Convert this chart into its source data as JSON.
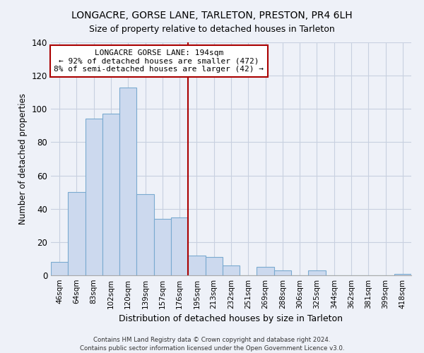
{
  "title": "LONGACRE, GORSE LANE, TARLETON, PRESTON, PR4 6LH",
  "subtitle": "Size of property relative to detached houses in Tarleton",
  "xlabel": "Distribution of detached houses by size in Tarleton",
  "ylabel": "Number of detached properties",
  "categories": [
    "46sqm",
    "64sqm",
    "83sqm",
    "102sqm",
    "120sqm",
    "139sqm",
    "157sqm",
    "176sqm",
    "195sqm",
    "213sqm",
    "232sqm",
    "251sqm",
    "269sqm",
    "288sqm",
    "306sqm",
    "325sqm",
    "344sqm",
    "362sqm",
    "381sqm",
    "399sqm",
    "418sqm"
  ],
  "values": [
    8,
    50,
    94,
    97,
    113,
    49,
    34,
    35,
    12,
    11,
    6,
    0,
    5,
    3,
    0,
    3,
    0,
    0,
    0,
    0,
    1
  ],
  "bar_color": "#ccd9ee",
  "bar_edge_color": "#7aaad0",
  "vline_x_index": 8,
  "vline_color": "#aa0000",
  "annotation_title": "LONGACRE GORSE LANE: 194sqm",
  "annotation_line1": "← 92% of detached houses are smaller (472)",
  "annotation_line2": "8% of semi-detached houses are larger (42) →",
  "annotation_box_edge_color": "#aa0000",
  "annotation_box_fc": "#ffffff",
  "ylim": [
    0,
    140
  ],
  "yticks": [
    0,
    20,
    40,
    60,
    80,
    100,
    120,
    140
  ],
  "grid_color": "#c8d0e0",
  "footer_line1": "Contains HM Land Registry data © Crown copyright and database right 2024.",
  "footer_line2": "Contains public sector information licensed under the Open Government Licence v3.0.",
  "background_color": "#eef1f8"
}
